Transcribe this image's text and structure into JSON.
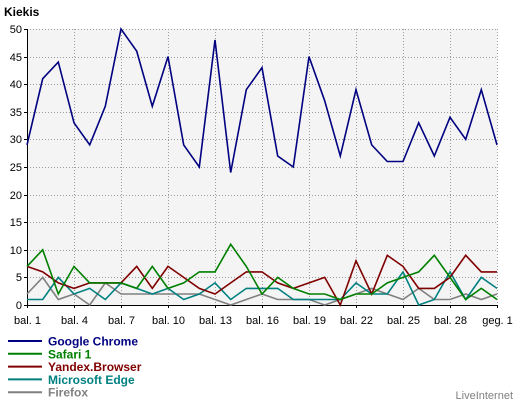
{
  "chart_data": {
    "type": "line",
    "ylabel": "Kiekis",
    "ylim": [
      0,
      50
    ],
    "y_ticks": [
      0,
      5,
      10,
      15,
      20,
      25,
      30,
      35,
      40,
      45,
      50
    ],
    "x_tick_labels": [
      "bal. 1",
      "bal. 4",
      "bal. 7",
      "bal. 10",
      "bal. 13",
      "bal. 16",
      "bal. 19",
      "bal. 22",
      "bal. 25",
      "bal. 28",
      "geg. 1"
    ],
    "grid": true,
    "legend_position": "bottom-left",
    "series": [
      {
        "name": "Google Chrome",
        "color": "#000080",
        "values": [
          29,
          41,
          44,
          33,
          29,
          36,
          50,
          46,
          36,
          45,
          29,
          25,
          48,
          24,
          39,
          43,
          27,
          25,
          45,
          37,
          27,
          39,
          29,
          26,
          26,
          33,
          27,
          34,
          30,
          39,
          29
        ]
      },
      {
        "name": "Safari 1",
        "color": "#008000",
        "values": [
          7,
          10,
          2,
          7,
          4,
          4,
          4,
          3,
          7,
          3,
          4,
          6,
          6,
          11,
          7,
          2,
          5,
          3,
          2,
          2,
          1,
          2,
          2,
          4,
          5,
          6,
          9,
          5,
          1,
          3,
          1
        ]
      },
      {
        "name": "Yandex.Browser",
        "color": "#800000",
        "values": [
          7,
          6,
          4,
          3,
          4,
          4,
          4,
          7,
          3,
          7,
          5,
          3,
          2,
          4,
          6,
          6,
          4,
          3,
          4,
          5,
          0,
          8,
          2,
          9,
          7,
          3,
          3,
          5,
          9,
          6,
          6
        ]
      },
      {
        "name": "Microsoft Edge",
        "color": "#008080",
        "values": [
          1,
          1,
          5,
          2,
          3,
          1,
          4,
          3,
          2,
          3,
          1,
          2,
          4,
          1,
          3,
          3,
          3,
          1,
          1,
          1,
          1,
          4,
          2,
          2,
          6,
          0,
          1,
          6,
          1,
          5,
          3
        ]
      },
      {
        "name": "Firefox",
        "color": "#808080",
        "values": [
          2,
          5,
          1,
          2,
          0,
          4,
          2,
          2,
          2,
          2,
          2,
          2,
          1,
          0,
          1,
          2,
          1,
          1,
          1,
          0,
          1,
          2,
          3,
          2,
          1,
          3,
          1,
          1,
          2,
          1,
          2
        ]
      }
    ]
  },
  "brand": "LiveInternet"
}
